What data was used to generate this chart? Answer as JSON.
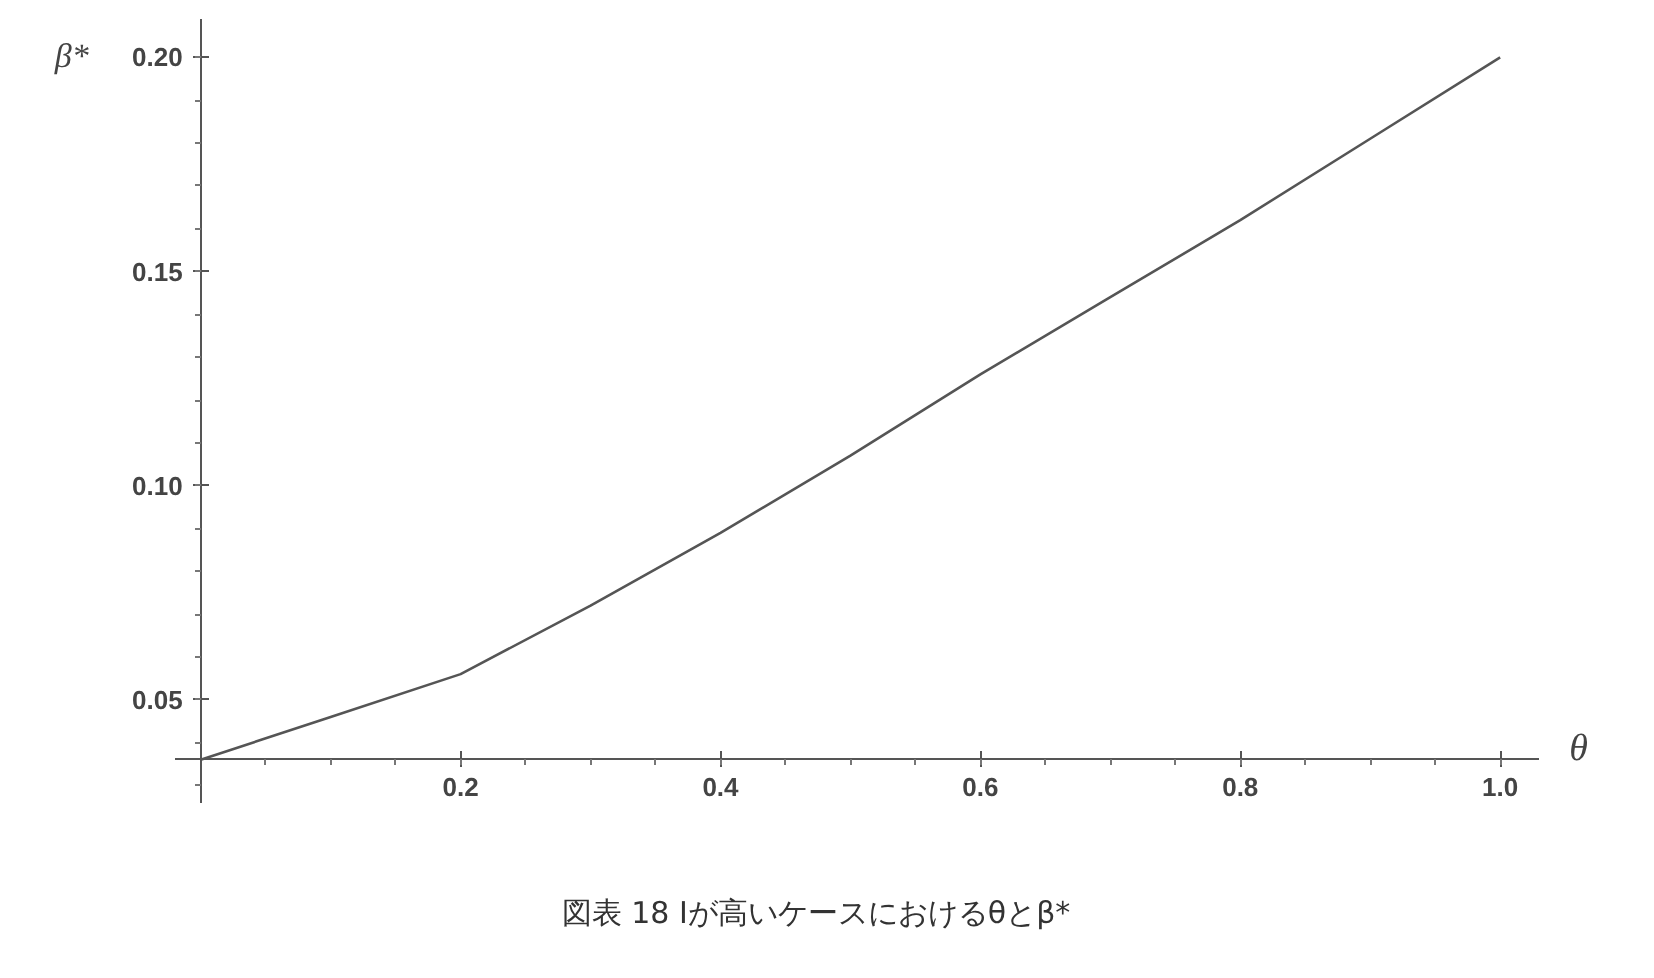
{
  "chart_data": {
    "type": "line",
    "xlabel": "θ",
    "ylabel": "β*",
    "annotations": [
      "図表 18 Iが高いケースにおけるθとβ*"
    ],
    "x": [
      0,
      0.1,
      0.2,
      0.3,
      0.4,
      0.5,
      0.6,
      0.7,
      0.8,
      0.9,
      1.0
    ],
    "series": [
      {
        "color": "#555555",
        "values": [
          0.036,
          0.046,
          0.056,
          0.072,
          0.089,
          0.107,
          0.126,
          0.144,
          0.162,
          0.181,
          0.2
        ]
      }
    ],
    "xlim": [
      -0.02,
      1.03
    ],
    "ylim": [
      0.026,
      0.209
    ],
    "xticks": [
      {
        "value": 0.2,
        "label": "0.2"
      },
      {
        "value": 0.4,
        "label": "0.4"
      },
      {
        "value": 0.6,
        "label": "0.6"
      },
      {
        "value": 0.8,
        "label": "0.8"
      },
      {
        "value": 1.0,
        "label": "1.0"
      }
    ],
    "yticks": [
      {
        "value": 0.05,
        "label": "0.05"
      },
      {
        "value": 0.1,
        "label": "0.10"
      },
      {
        "value": 0.15,
        "label": "0.15"
      },
      {
        "value": 0.2,
        "label": "0.20"
      }
    ],
    "grid": false,
    "marker": "none",
    "line_style": "solid"
  }
}
